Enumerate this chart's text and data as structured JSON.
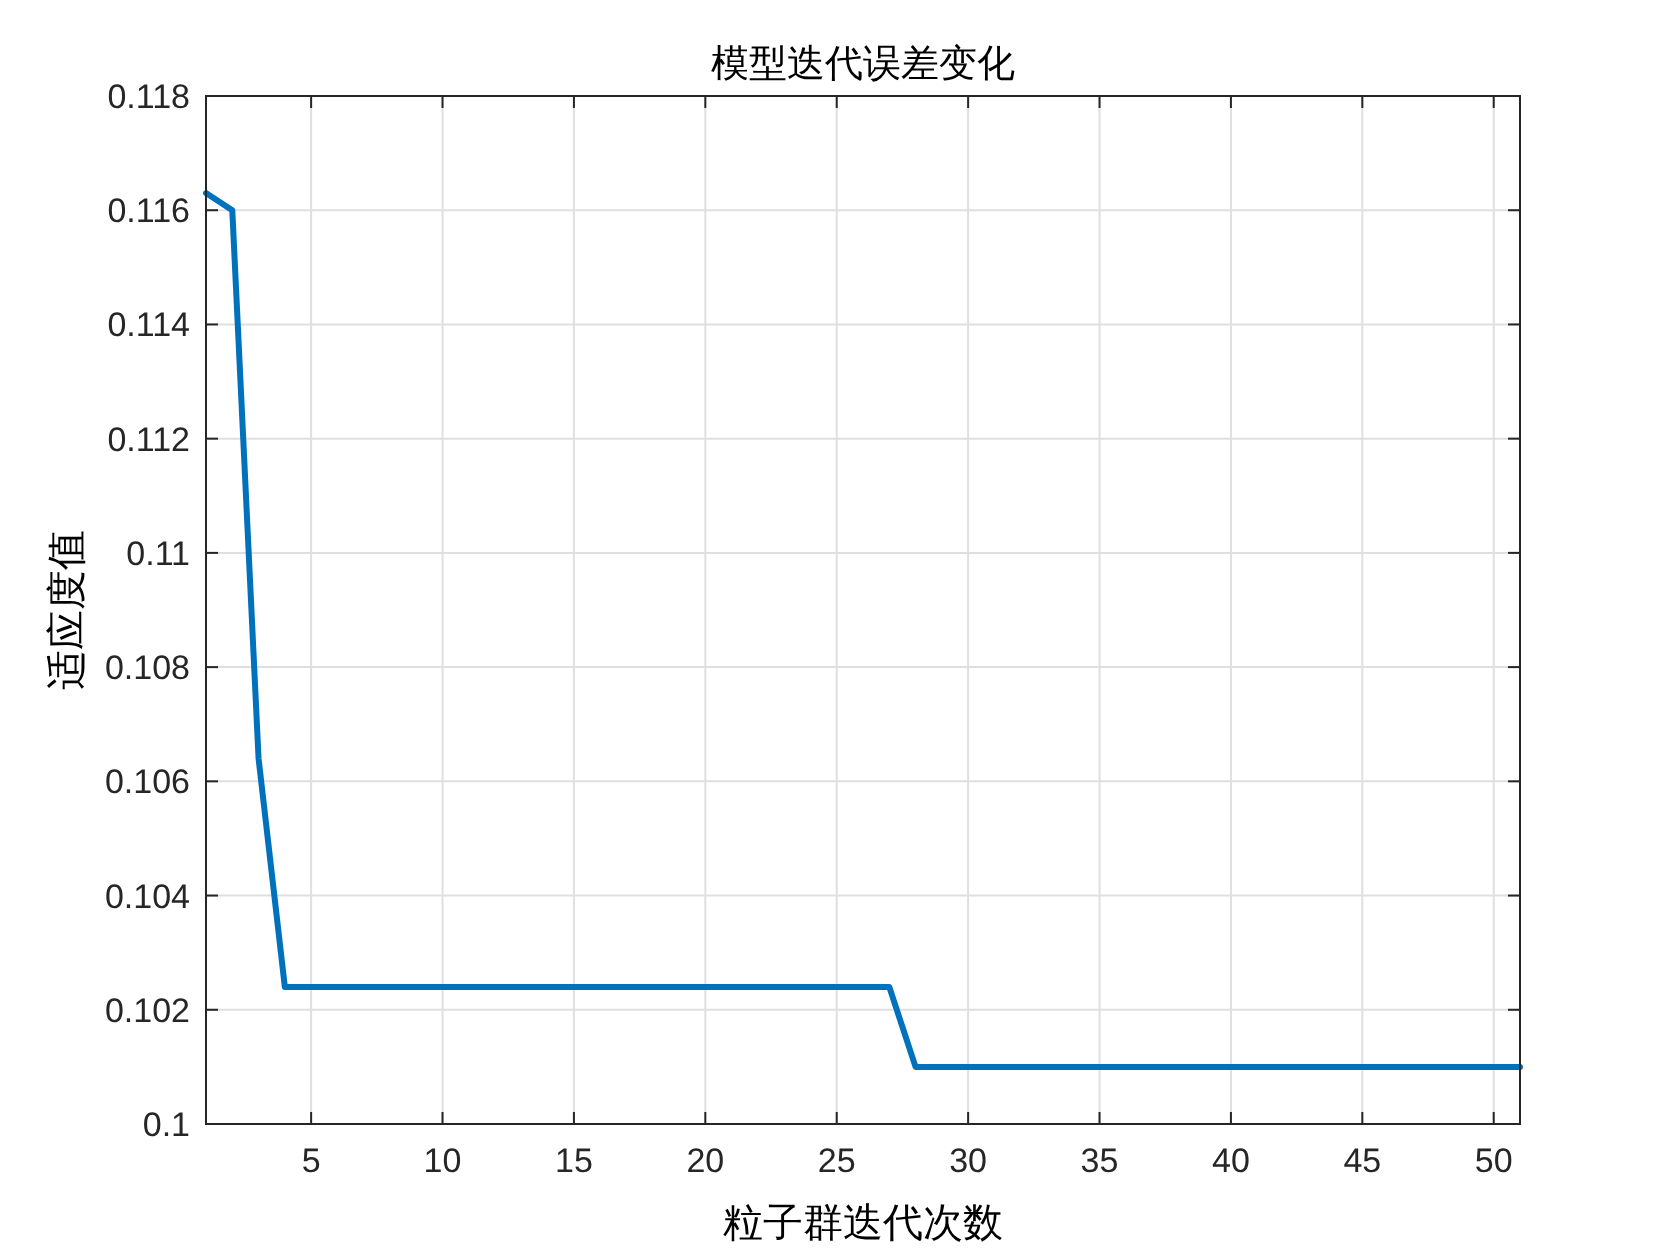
{
  "chart_data": {
    "type": "line",
    "title": "模型迭代误差变化",
    "xlabel": "粒子群迭代次数",
    "ylabel": "适应度值",
    "x": [
      1,
      2,
      3,
      4,
      27,
      28,
      51
    ],
    "values": [
      0.1163,
      0.116,
      0.1064,
      0.1024,
      0.1024,
      0.101,
      0.101
    ],
    "color": "#0072bd",
    "xlim": [
      1,
      51
    ],
    "xticks": [
      5,
      10,
      15,
      20,
      25,
      30,
      35,
      40,
      45,
      50
    ],
    "ylim": [
      0.1,
      0.118
    ],
    "yticks": [
      0.1,
      0.102,
      0.104,
      0.106,
      0.108,
      0.11,
      0.112,
      0.114,
      0.116,
      0.118
    ],
    "grid": true,
    "line_style": "solid",
    "marker": "none"
  }
}
